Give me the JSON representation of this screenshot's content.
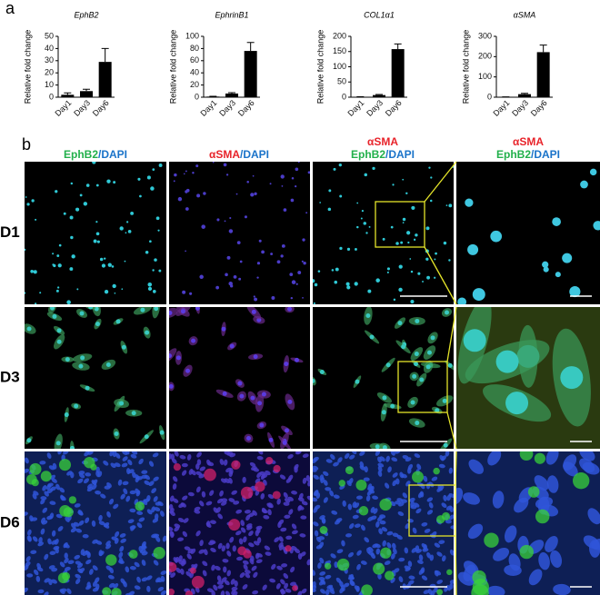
{
  "panel_labels": [
    "a",
    "b"
  ],
  "chart_data": [
    {
      "type": "bar",
      "title": "EphB2",
      "y_label": "Relative fold change",
      "categories": [
        "Day1",
        "Day3",
        "Day6"
      ],
      "series": [
        {
          "color": "#000000",
          "values": [
            2,
            5,
            29
          ],
          "errors": [
            1.5,
            1.5,
            11
          ]
        }
      ],
      "ylim": [
        0,
        50
      ],
      "yticks": [
        0,
        10,
        20,
        30,
        40,
        50
      ]
    },
    {
      "type": "bar",
      "title": "EphrinB1",
      "y_label": "Relative fold change",
      "categories": [
        "Day1",
        "Day3",
        "Day6"
      ],
      "series": [
        {
          "color": "#000000",
          "values": [
            1,
            6,
            76
          ],
          "errors": [
            0.5,
            1.5,
            14
          ]
        }
      ],
      "ylim": [
        0,
        100
      ],
      "yticks": [
        0,
        20,
        40,
        60,
        80,
        100
      ]
    },
    {
      "type": "bar",
      "title": "COL1α1",
      "y_label": "Relative fold change",
      "categories": [
        "Day1",
        "Day3",
        "Day6"
      ],
      "series": [
        {
          "color": "#000000",
          "values": [
            1,
            7,
            158
          ],
          "errors": [
            0.5,
            2,
            17
          ]
        }
      ],
      "ylim": [
        0,
        200
      ],
      "yticks": [
        0,
        50,
        100,
        150,
        200
      ]
    },
    {
      "type": "bar",
      "title": "αSMA",
      "y_label": "Relative fold change",
      "categories": [
        "Day1",
        "Day3",
        "Day6"
      ],
      "series": [
        {
          "color": "#000000",
          "values": [
            1,
            15,
            222
          ],
          "errors": [
            0.5,
            4,
            35
          ]
        }
      ],
      "ylim": [
        0,
        300
      ],
      "yticks": [
        0,
        100,
        200,
        300
      ]
    }
  ],
  "image_grid": {
    "column_headers": [
      [
        [
          {
            "text": "EphB2",
            "color": "#22b04b"
          },
          {
            "text": "/DAPI",
            "color": "#1a73c9"
          }
        ]
      ],
      [
        [
          {
            "text": "αSMA",
            "color": "#e8232a"
          },
          {
            "text": "/DAPI",
            "color": "#1a73c9"
          }
        ]
      ],
      [
        [
          {
            "text": "αSMA",
            "color": "#e8232a"
          }
        ],
        [
          {
            "text": "EphB2",
            "color": "#22b04b"
          },
          {
            "text": "/DAPI",
            "color": "#1a73c9"
          }
        ]
      ],
      [
        [
          {
            "text": "αSMA",
            "color": "#e8232a"
          }
        ],
        [
          {
            "text": "EphB2",
            "color": "#22b04b"
          },
          {
            "text": "/DAPI",
            "color": "#1a73c9"
          }
        ]
      ]
    ],
    "row_labels": [
      "D1",
      "D3",
      "D6"
    ]
  }
}
